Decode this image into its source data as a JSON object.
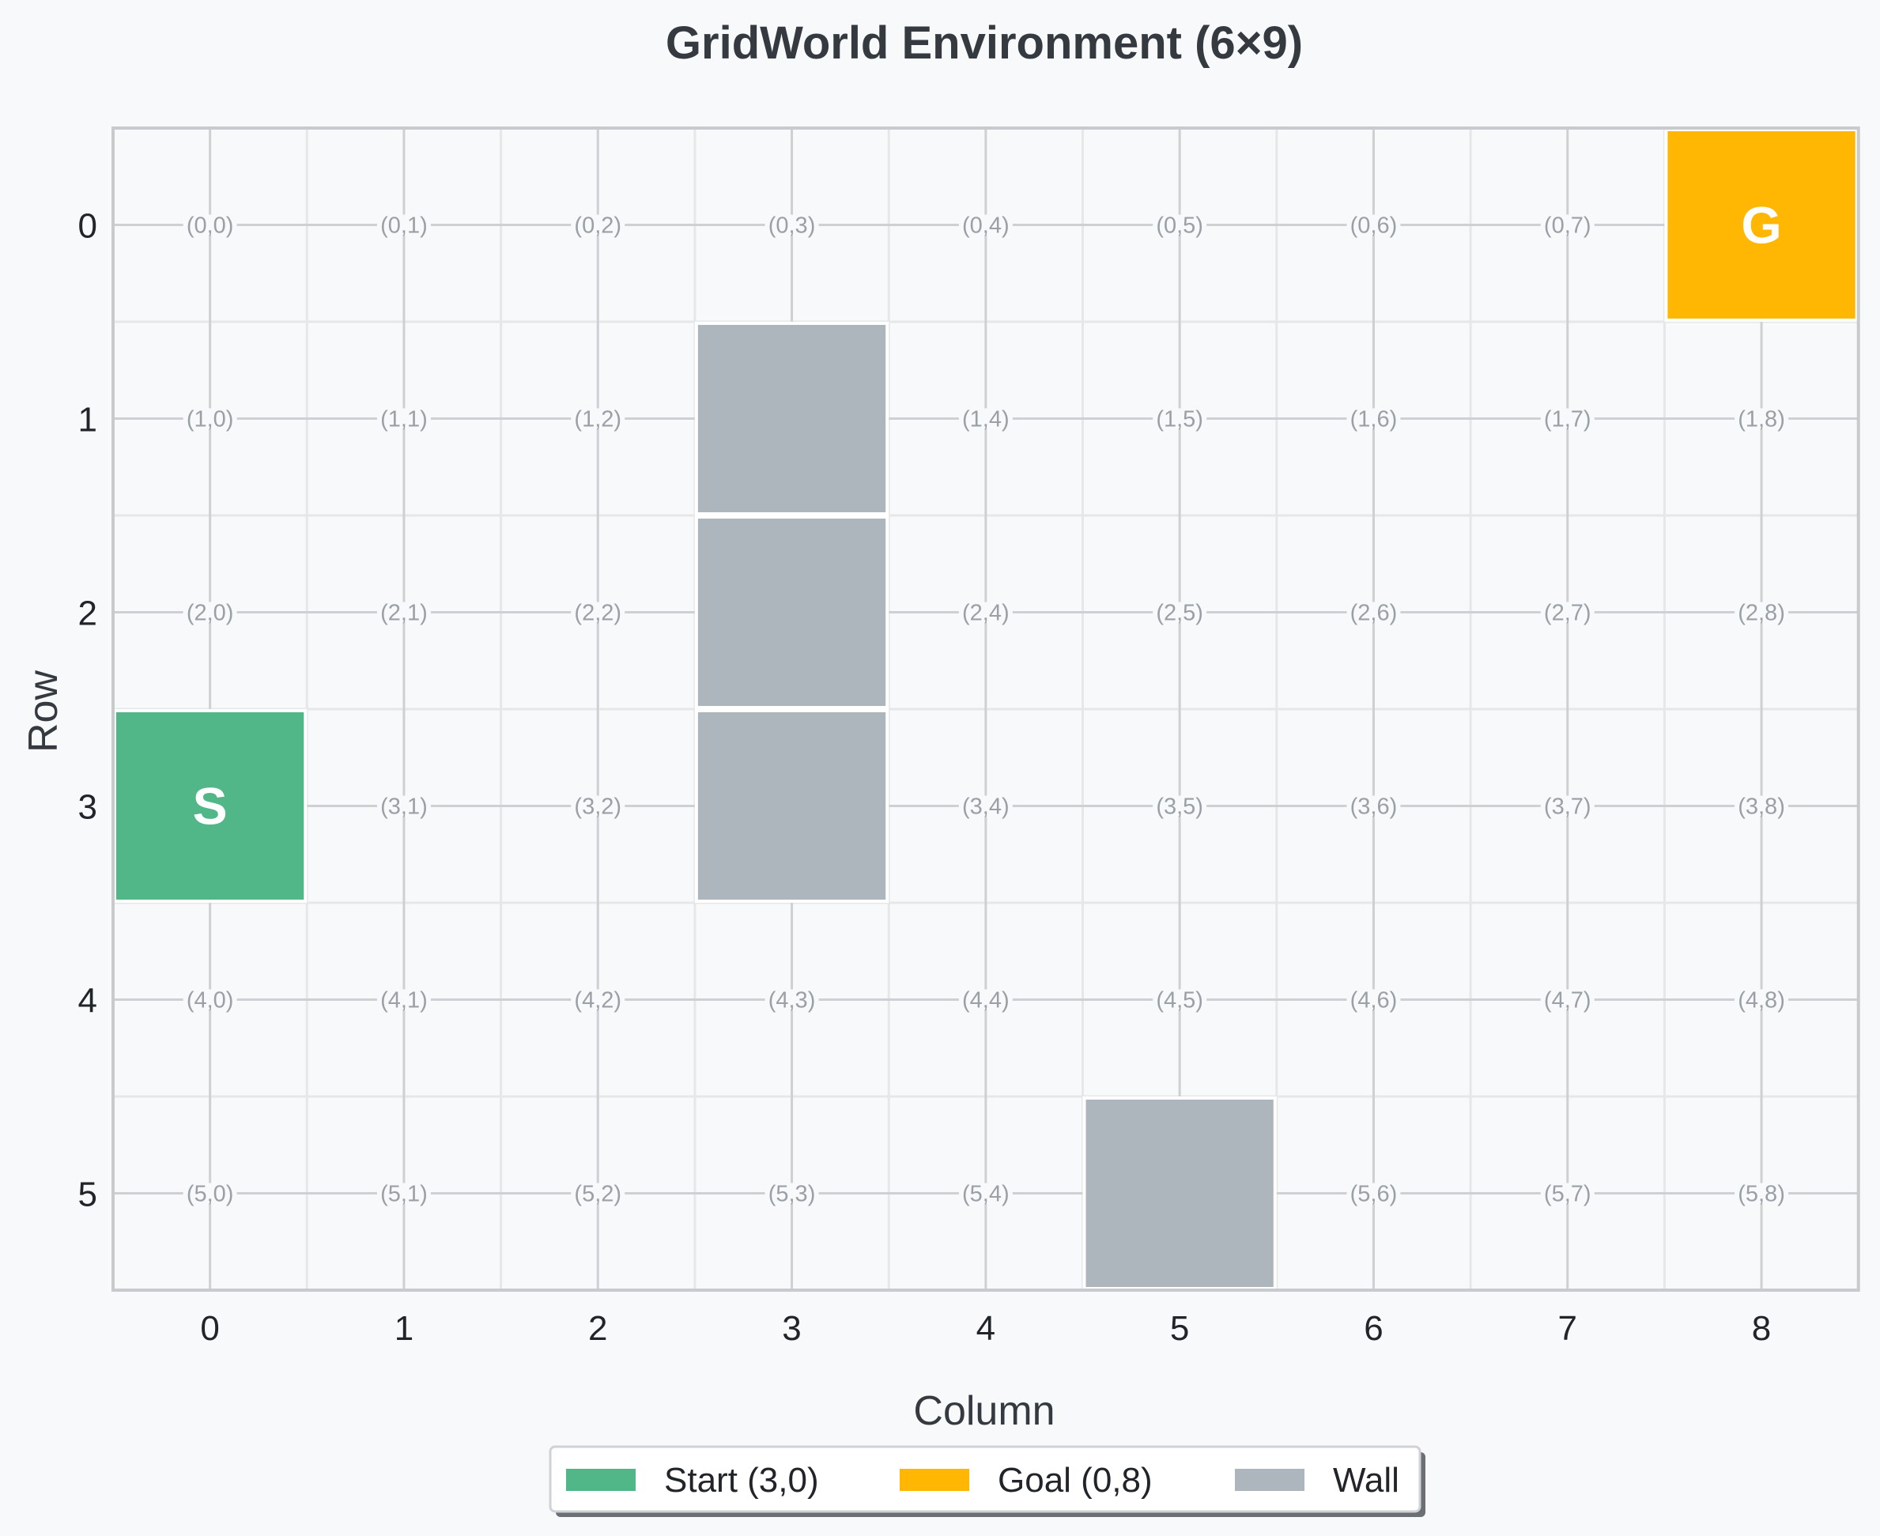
{
  "chart_data": {
    "type": "heatmap",
    "title": "GridWorld Environment (6×9)",
    "xlabel": "Column",
    "ylabel": "Row",
    "rows": 6,
    "cols": 9,
    "x_ticks": [
      "0",
      "1",
      "2",
      "3",
      "4",
      "5",
      "6",
      "7",
      "8"
    ],
    "y_ticks": [
      "0",
      "1",
      "2",
      "3",
      "4",
      "5"
    ],
    "grid": true,
    "start": {
      "row": 3,
      "col": 0,
      "label": "S",
      "color": "#52b788"
    },
    "goal": {
      "row": 0,
      "col": 8,
      "label": "G",
      "color": "#ffb703"
    },
    "walls": [
      {
        "row": 1,
        "col": 3
      },
      {
        "row": 2,
        "col": 3
      },
      {
        "row": 3,
        "col": 3
      },
      {
        "row": 5,
        "col": 5
      }
    ],
    "wall_color": "#adb5bd",
    "cell_labels": [
      [
        "(0,0)",
        "(0,1)",
        "(0,2)",
        "(0,3)",
        "(0,4)",
        "(0,5)",
        "(0,6)",
        "(0,7)",
        ""
      ],
      [
        "(1,0)",
        "(1,1)",
        "(1,2)",
        "",
        "(1,4)",
        "(1,5)",
        "(1,6)",
        "(1,7)",
        "(1,8)"
      ],
      [
        "(2,0)",
        "(2,1)",
        "(2,2)",
        "",
        "(2,4)",
        "(2,5)",
        "(2,6)",
        "(2,7)",
        "(2,8)"
      ],
      [
        "",
        "(3,1)",
        "(3,2)",
        "",
        "(3,4)",
        "(3,5)",
        "(3,6)",
        "(3,7)",
        "(3,8)"
      ],
      [
        "(4,0)",
        "(4,1)",
        "(4,2)",
        "(4,3)",
        "(4,4)",
        "(4,5)",
        "(4,6)",
        "(4,7)",
        "(4,8)"
      ],
      [
        "(5,0)",
        "(5,1)",
        "(5,2)",
        "(5,3)",
        "(5,4)",
        "",
        "(5,6)",
        "(5,7)",
        "(5,8)"
      ]
    ],
    "legend": {
      "placement": "bottom-center",
      "entries": [
        {
          "label": "Start (3,0)",
          "color": "#52b788"
        },
        {
          "label": "Goal (0,8)",
          "color": "#ffb703"
        },
        {
          "label": "Wall",
          "color": "#adb5bd"
        }
      ]
    }
  }
}
